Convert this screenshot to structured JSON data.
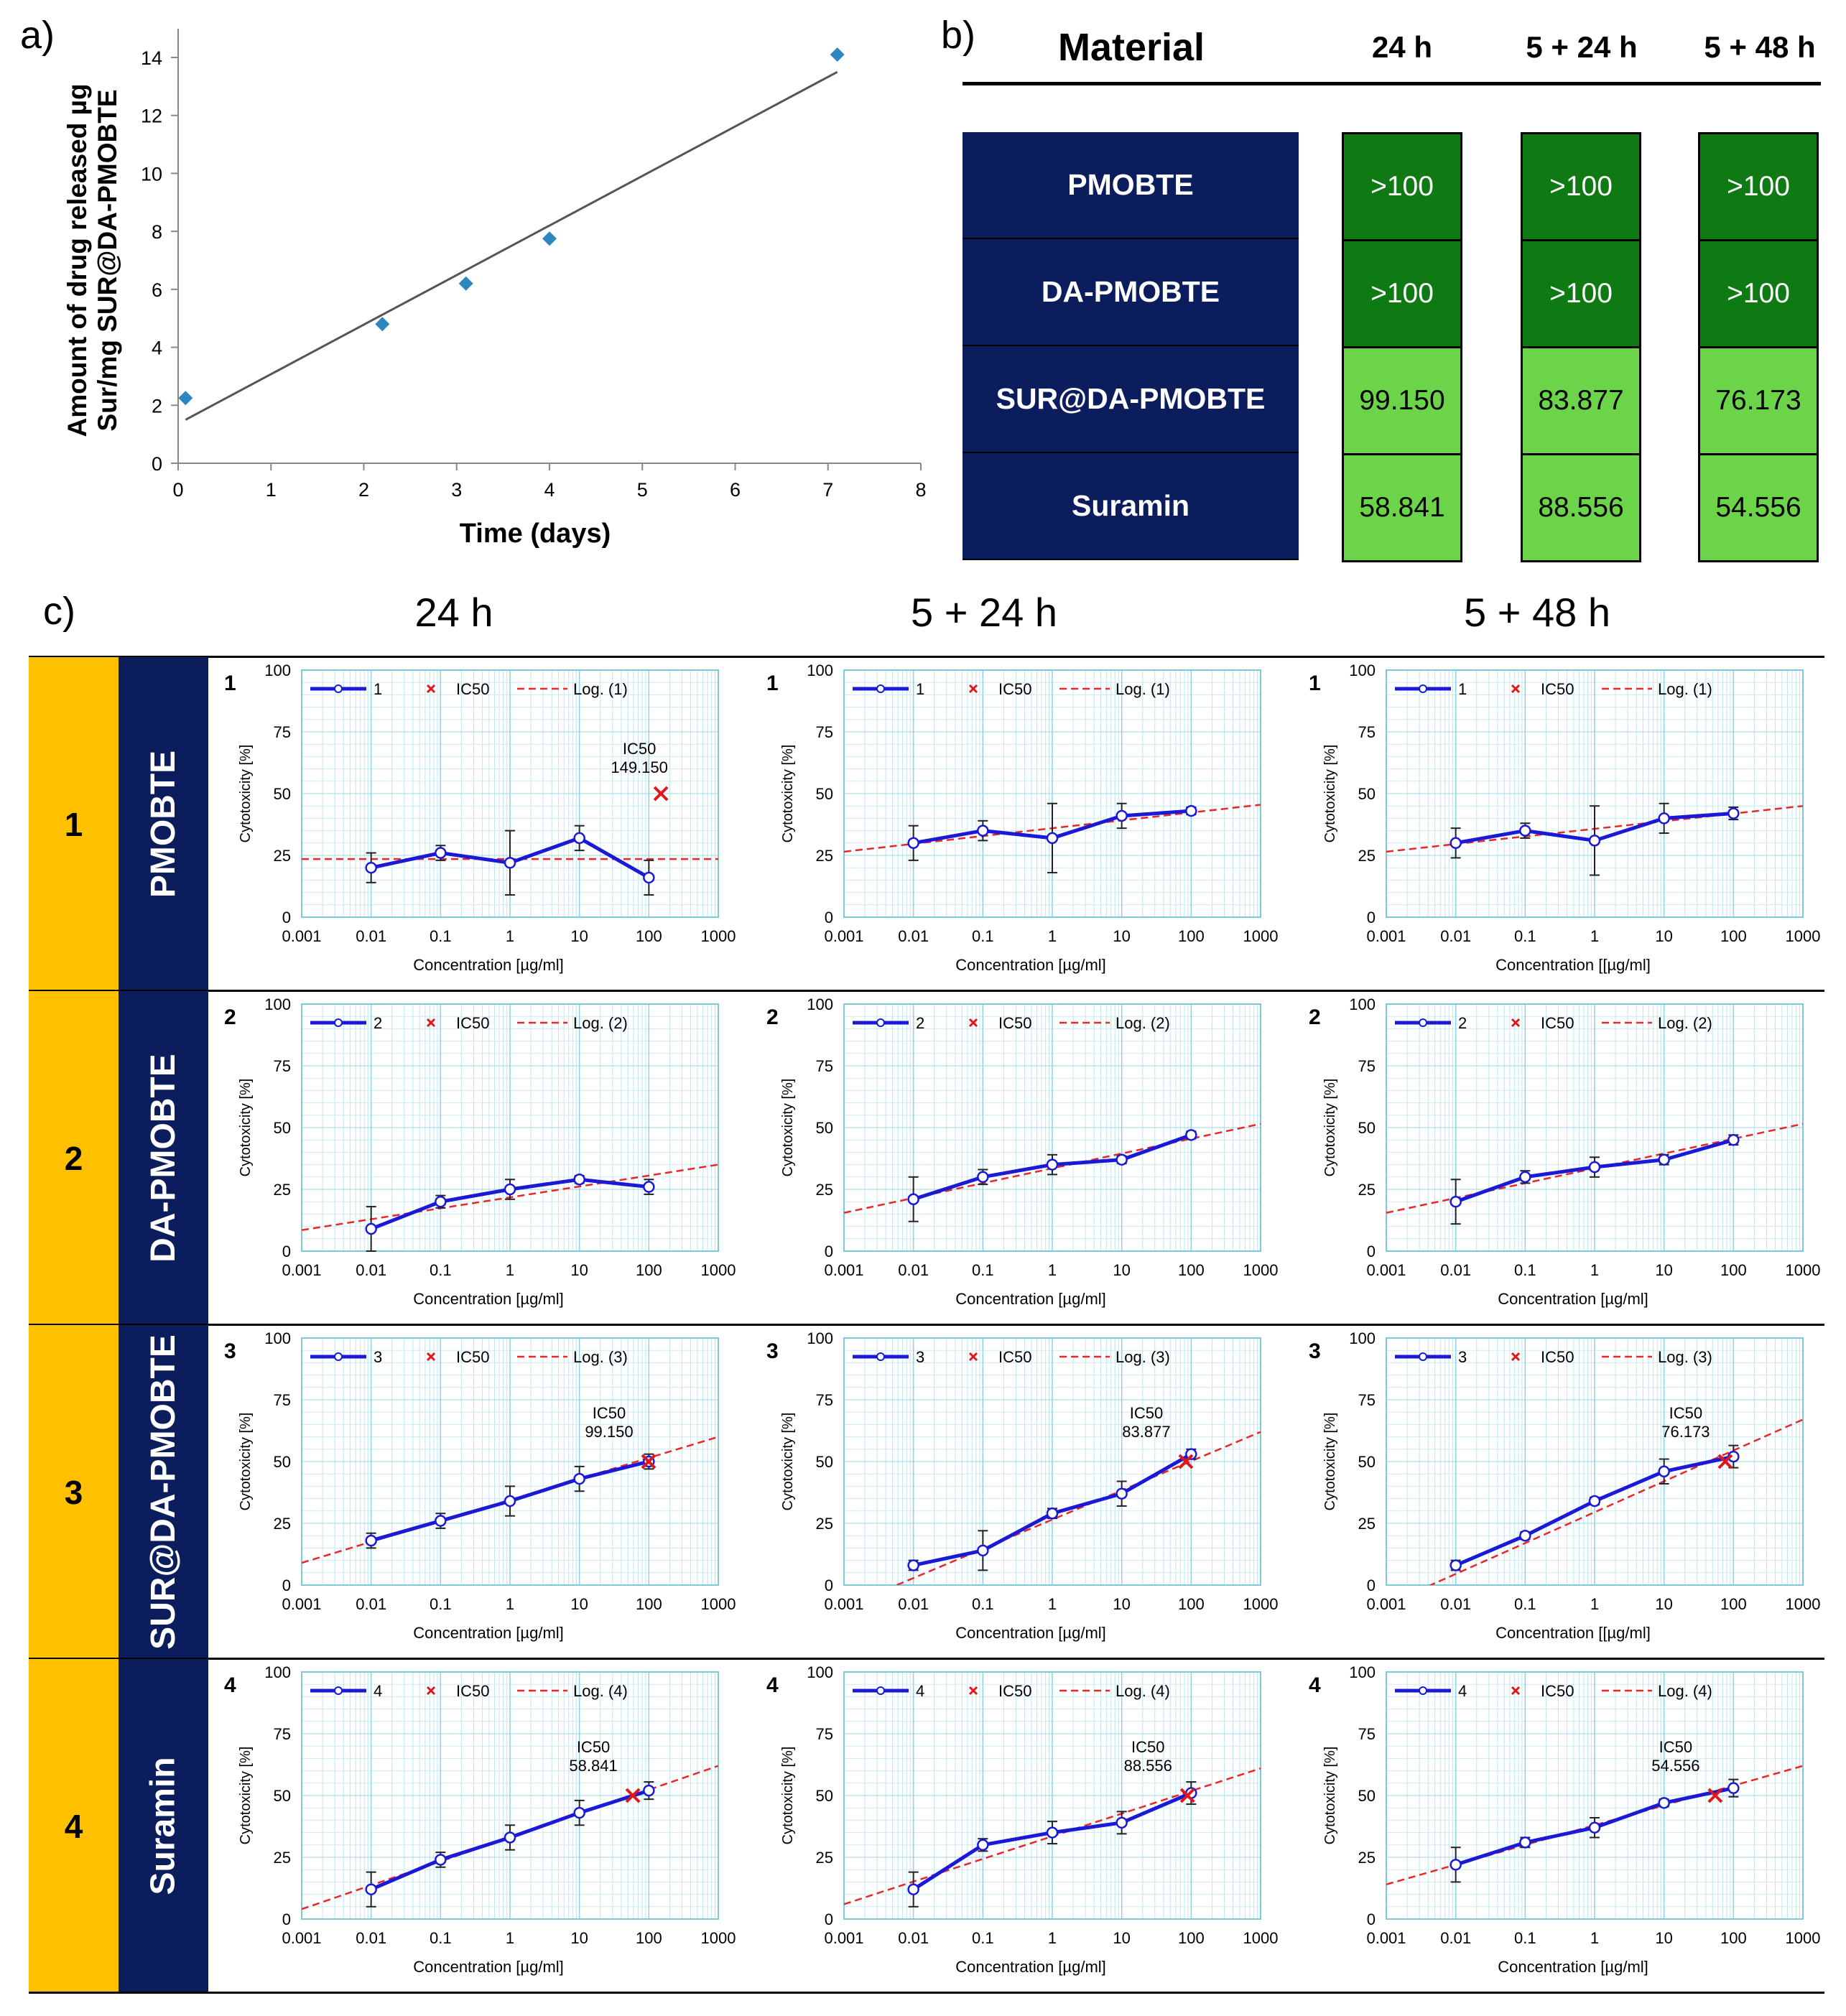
{
  "panel_labels": {
    "a": "a)",
    "b": "b)",
    "c": "c)"
  },
  "chart_data": [
    {
      "id": "release",
      "type": "scatter",
      "xlabel": "Time (days)",
      "ylabel_line1": "Amount of drug released µg",
      "ylabel_line2": "Sur/mg SUR@DA-PMOBTE",
      "xlim": [
        0,
        8
      ],
      "ylim": [
        0,
        14
      ],
      "xticks": [
        0,
        1,
        2,
        3,
        4,
        5,
        6,
        7,
        8
      ],
      "yticks": [
        0,
        2,
        4,
        6,
        8,
        10,
        12,
        14
      ],
      "points": [
        {
          "x": 0.08,
          "y": 2.25
        },
        {
          "x": 2.2,
          "y": 4.8
        },
        {
          "x": 3.1,
          "y": 6.2
        },
        {
          "x": 4.0,
          "y": 7.75
        },
        {
          "x": 7.1,
          "y": 14.1
        }
      ],
      "trendline": [
        {
          "x": 0.08,
          "y": 1.5
        },
        {
          "x": 7.1,
          "y": 13.5
        }
      ],
      "point_color": "#2e86c1",
      "trend_color": "#555555"
    },
    {
      "id": "ic50_table",
      "type": "table",
      "columns": [
        "Material",
        "24 h",
        "5 + 24 h",
        "5 + 48 h"
      ],
      "rows": [
        {
          "material": "PMOBTE",
          "values": [
            ">100",
            ">100",
            ">100"
          ],
          "color": "#0f7a14"
        },
        {
          "material": "DA-PMOBTE",
          "values": [
            ">100",
            ">100",
            ">100"
          ],
          "color": "#0f7a14"
        },
        {
          "material": "SUR@DA-PMOBTE",
          "values": [
            "99.150",
            "83.877",
            "76.173"
          ],
          "color": "#6cd448"
        },
        {
          "material": "Suramin",
          "values": [
            "58.841",
            "88.556",
            "54.556"
          ],
          "color": "#6cd448"
        }
      ]
    }
  ],
  "grid": {
    "column_titles": [
      "24 h",
      "5 + 24 h",
      "5 + 48 h"
    ],
    "rows": [
      {
        "number": "1",
        "name": "PMOBTE"
      },
      {
        "number": "2",
        "name": "DA-PMOBTE"
      },
      {
        "number": "3",
        "name": "SUR@DA-PMOBTE"
      },
      {
        "number": "4",
        "name": "Suramin"
      }
    ],
    "common": {
      "type": "line",
      "xscale": "log",
      "xticks": [
        "0.001",
        "0.01",
        "0.1",
        "1",
        "10",
        "100",
        "1000"
      ],
      "yticks": [
        "0",
        "25",
        "50",
        "75",
        "100"
      ],
      "ylim": [
        0,
        100
      ],
      "ylabel": "Cytotoxicity [%]",
      "x_concentrations": [
        0.01,
        0.1,
        1,
        10,
        100
      ],
      "ic50_legend": "IC50",
      "ic50_label": "IC50",
      "series_color": "#1a1ad6",
      "fit_color": "#e8272a"
    },
    "charts": [
      {
        "r": 0,
        "c": 0,
        "label": "1",
        "legend_series": "1",
        "legend_fit": "Log. (1)",
        "xlabel": "Concentration [µg/ml]",
        "y": [
          20,
          26,
          22,
          32,
          16
        ],
        "err": [
          6,
          3,
          13,
          5,
          7
        ],
        "fit": [
          23.5,
          23.5
        ],
        "ic50": {
          "x": 149.15,
          "y": 50,
          "text": "149.150",
          "inplot": true
        }
      },
      {
        "r": 0,
        "c": 1,
        "label": "1",
        "legend_series": "1",
        "legend_fit": "Log. (1)",
        "xlabel": "Concentration [µg/ml]",
        "y": [
          30,
          35,
          32,
          41,
          43
        ],
        "err": [
          7,
          4,
          14,
          5,
          1.5
        ],
        "fit": [
          26.5,
          45.5
        ],
        "ic50": null
      },
      {
        "r": 0,
        "c": 2,
        "label": "1",
        "legend_series": "1",
        "legend_fit": "Log. (1)",
        "xlabel": "Concentration [[µg/ml]",
        "y": [
          30,
          35,
          31,
          40,
          42
        ],
        "err": [
          6,
          3,
          14,
          6,
          2.5
        ],
        "fit": [
          26.5,
          45
        ],
        "ic50": null
      },
      {
        "r": 1,
        "c": 0,
        "label": "2",
        "legend_series": "2",
        "legend_fit": "Log. (2)",
        "xlabel": "Concentration [µg/ml]",
        "y": [
          9,
          20,
          25,
          29,
          26
        ],
        "err": [
          9,
          2.5,
          4,
          1.5,
          3
        ],
        "fit": [
          8.5,
          35
        ],
        "ic50": null
      },
      {
        "r": 1,
        "c": 1,
        "label": "2",
        "legend_series": "2",
        "legend_fit": "Log. (2)",
        "xlabel": "Concentration [µg/ml]",
        "y": [
          21,
          30,
          35,
          37,
          47
        ],
        "err": [
          9,
          3,
          4,
          1.5,
          1.5
        ],
        "fit": [
          15.5,
          51.5
        ],
        "ic50": null
      },
      {
        "r": 1,
        "c": 2,
        "label": "2",
        "legend_series": "2",
        "legend_fit": "Log. (2)",
        "xlabel": "Concentration [µg/ml]",
        "y": [
          20,
          30,
          34,
          37,
          45
        ],
        "err": [
          9,
          2.5,
          4,
          2,
          2
        ],
        "fit": [
          15.5,
          51.5
        ],
        "ic50": null
      },
      {
        "r": 2,
        "c": 0,
        "label": "3",
        "legend_series": "3",
        "legend_fit": "Log. (3)",
        "xlabel": "Concentration [µg/ml]",
        "y": [
          18,
          26,
          34,
          43,
          50
        ],
        "err": [
          3,
          3,
          6,
          5,
          3
        ],
        "fit": [
          9,
          60
        ],
        "ic50": {
          "x": 99.15,
          "y": 50,
          "text": "99.150",
          "inplot": false
        }
      },
      {
        "r": 2,
        "c": 1,
        "label": "3",
        "legend_series": "3",
        "legend_fit": "Log. (3)",
        "xlabel": "Concentration [µg/ml]",
        "y": [
          8,
          14,
          29,
          37,
          53
        ],
        "err": [
          2,
          8,
          2,
          5,
          2
        ],
        "fit": [
          -9,
          62
        ],
        "ic50": {
          "x": 83.877,
          "y": 50,
          "text": "83.877",
          "inplot": false
        }
      },
      {
        "r": 2,
        "c": 2,
        "label": "3",
        "legend_series": "3",
        "legend_fit": "Log. (3)",
        "xlabel": "Concentration [[µg/ml]",
        "y": [
          8,
          20,
          34,
          46,
          52
        ],
        "err": [
          2,
          1.5,
          1.5,
          5,
          4.5
        ],
        "fit": [
          -8,
          67
        ],
        "ic50": {
          "x": 76.173,
          "y": 50,
          "text": "76.173",
          "inplot": false
        }
      },
      {
        "r": 3,
        "c": 0,
        "label": "4",
        "legend_series": "4",
        "legend_fit": "Log. (4)",
        "xlabel": "Concentration [µg/ml]",
        "y": [
          12,
          24,
          33,
          43,
          52
        ],
        "err": [
          7,
          3,
          5,
          5,
          3.5
        ],
        "fit": [
          4,
          62
        ],
        "ic50": {
          "x": 58.841,
          "y": 50,
          "text": "58.841",
          "inplot": false
        }
      },
      {
        "r": 3,
        "c": 1,
        "label": "4",
        "legend_series": "4",
        "legend_fit": "Log. (4)",
        "xlabel": "Concentration [µg/ml]",
        "y": [
          12,
          30,
          35,
          39,
          51
        ],
        "err": [
          7,
          2.5,
          4.5,
          4.5,
          4.5
        ],
        "fit": [
          6,
          61
        ],
        "ic50": {
          "x": 88.556,
          "y": 50,
          "text": "88.556",
          "inplot": false
        }
      },
      {
        "r": 3,
        "c": 2,
        "label": "4",
        "legend_series": "4",
        "legend_fit": "Log. (4)",
        "xlabel": "Concentration [µg/ml]",
        "y": [
          22,
          31,
          37,
          47,
          53
        ],
        "err": [
          7,
          2,
          4,
          1.5,
          3.5
        ],
        "fit": [
          14,
          62
        ],
        "ic50": {
          "x": 54.556,
          "y": 50,
          "text": "54.556",
          "inplot": false
        }
      }
    ]
  }
}
